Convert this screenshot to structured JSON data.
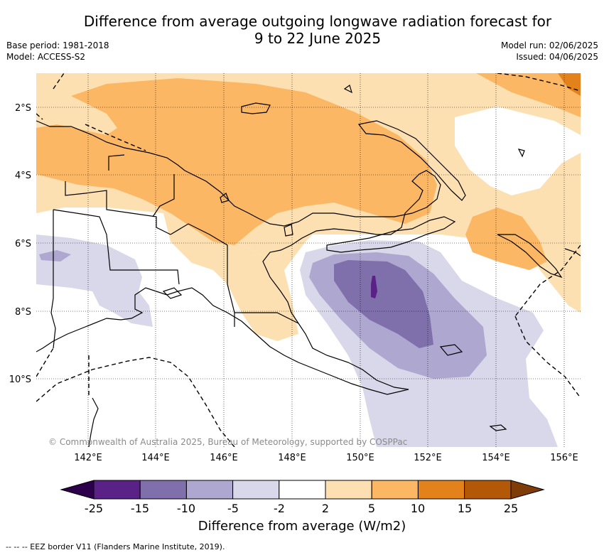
{
  "header": {
    "title_line1": "Difference from average outgoing longwave radiation forecast for",
    "title_line2": "9 to 22 June 2025",
    "base_period": "Base period: 1981-2018",
    "model": "Model: ACCESS-S2",
    "model_run": "Model run: 02/06/2025",
    "issued": "Issued: 04/06/2025"
  },
  "map": {
    "region": "Papua New Guinea and surrounding waters",
    "lon_labels": [
      "142°E",
      "144°E",
      "146°E",
      "148°E",
      "150°E",
      "152°E",
      "154°E",
      "156°E"
    ],
    "lat_labels": [
      "2°S",
      "4°S",
      "6°S",
      "8°S",
      "10°S"
    ],
    "copyright": "© Commonwealth of Australia 2025, Bureau of Meteorology, supported by COSPPac"
  },
  "colorbar": {
    "ticks": [
      "-25",
      "-15",
      "-10",
      "-5",
      "-2",
      "2",
      "5",
      "10",
      "15",
      "25"
    ],
    "colors": [
      "#5a2287",
      "#7f6fab",
      "#aea7cf",
      "#d8d8ea",
      "#ffffff",
      "#fde0b2",
      "#fbb764",
      "#e3821a",
      "#b35806"
    ],
    "end_low": "#2d004b",
    "end_high": "#7f3b08",
    "title": "Difference from average (W/m2)"
  },
  "footer": {
    "note": "--  --  -- EEZ border V11 (Flanders Marine Institute, 2019)."
  }
}
